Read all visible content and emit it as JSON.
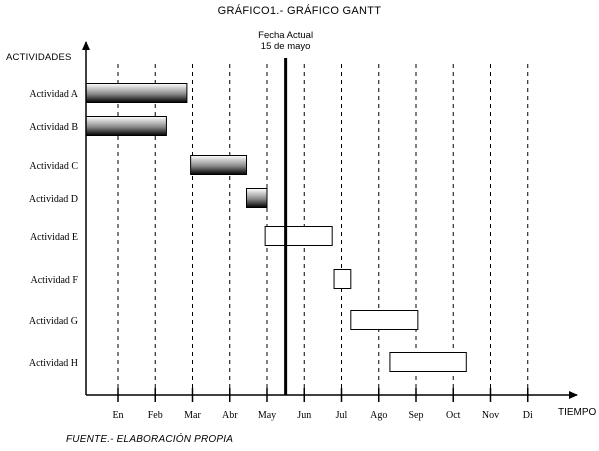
{
  "chart_data": {
    "type": "gantt",
    "title": "GRÁFICO1.- GRÁFICO GANTT",
    "ylabel": "ACTIVIDADES",
    "xlabel": "TIEMPO",
    "months": [
      "En",
      "Feb",
      "Mar",
      "Abr",
      "May",
      "Jun",
      "Jul",
      "Ago",
      "Sep",
      "Oct",
      "Nov",
      "Di"
    ],
    "current_date": {
      "label_line1": "Fecha Actual",
      "label_line2": "15 de mayo",
      "value": 4.5
    },
    "tasks": [
      {
        "name": "Actividad A",
        "start": 0.0,
        "end": 1.85,
        "style": "gradient"
      },
      {
        "name": "Actividad B",
        "start": 0.0,
        "end": 1.3,
        "style": "gradient"
      },
      {
        "name": "Actividad C",
        "start": 1.95,
        "end": 3.45,
        "style": "gradient"
      },
      {
        "name": "Actividad D",
        "start": 3.45,
        "end": 4.0,
        "style": "gradient"
      },
      {
        "name": "Actividad E",
        "start": 3.95,
        "end": 5.75,
        "style": "outline"
      },
      {
        "name": "Actividad F",
        "start": 5.8,
        "end": 6.25,
        "style": "outline"
      },
      {
        "name": "Actividad G",
        "start": 6.25,
        "end": 8.05,
        "style": "outline"
      },
      {
        "name": "Actividad H",
        "start": 7.3,
        "end": 9.35,
        "style": "outline"
      }
    ],
    "grid": true,
    "footnote": "FUENTE.- ELABORACIÓN PROPIA"
  }
}
